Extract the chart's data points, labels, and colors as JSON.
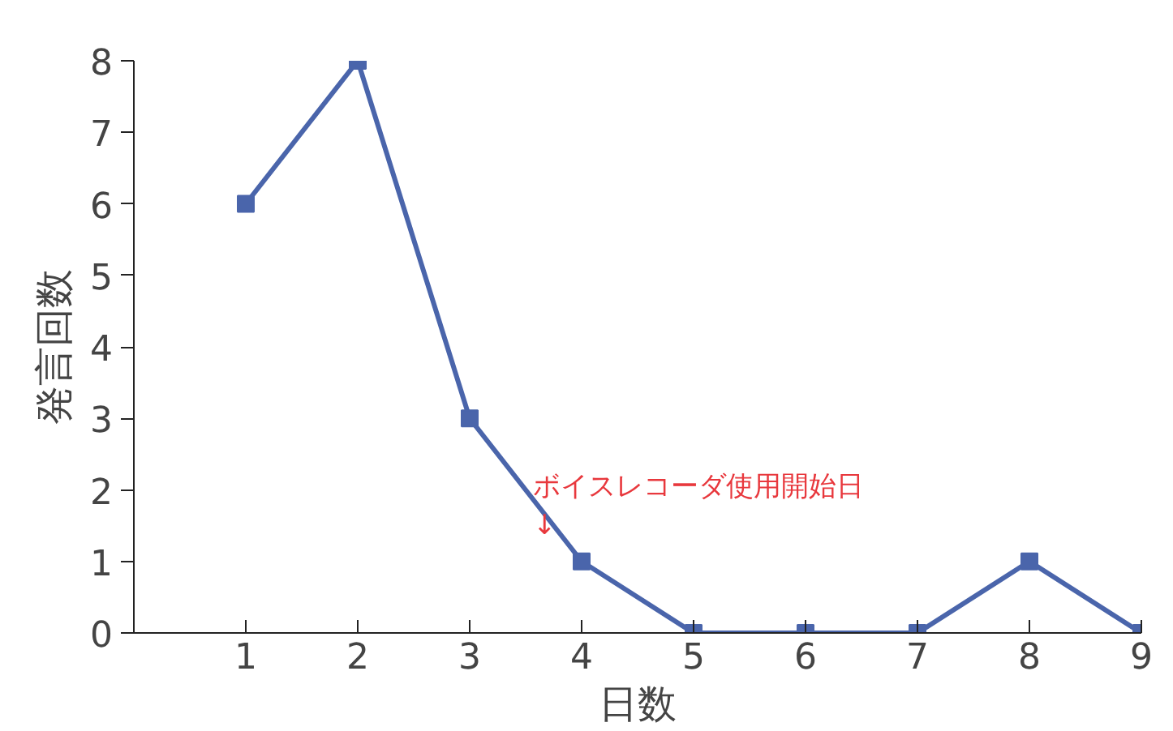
{
  "chart_data": {
    "type": "line",
    "xlabel": "日数",
    "ylabel": "発言回数",
    "x": [
      1,
      2,
      3,
      4,
      5,
      6,
      7,
      8,
      9
    ],
    "series": [
      {
        "color": "#4a65ab",
        "values": [
          6,
          8,
          3,
          1,
          0,
          0,
          0,
          1,
          0
        ]
      }
    ],
    "xlim": [
      0,
      9
    ],
    "xticks": [
      1,
      2,
      3,
      4,
      5,
      6,
      7,
      8,
      9
    ],
    "ylim": [
      0,
      8
    ],
    "yticks": [
      0,
      1,
      2,
      3,
      4,
      5,
      6,
      7,
      8
    ],
    "grid": false,
    "marker": "square",
    "line_style": "solid",
    "annotations": [
      {
        "text": "ボイスレコーダ使用開始日\n↓",
        "x": 4,
        "y": 1
      }
    ]
  }
}
